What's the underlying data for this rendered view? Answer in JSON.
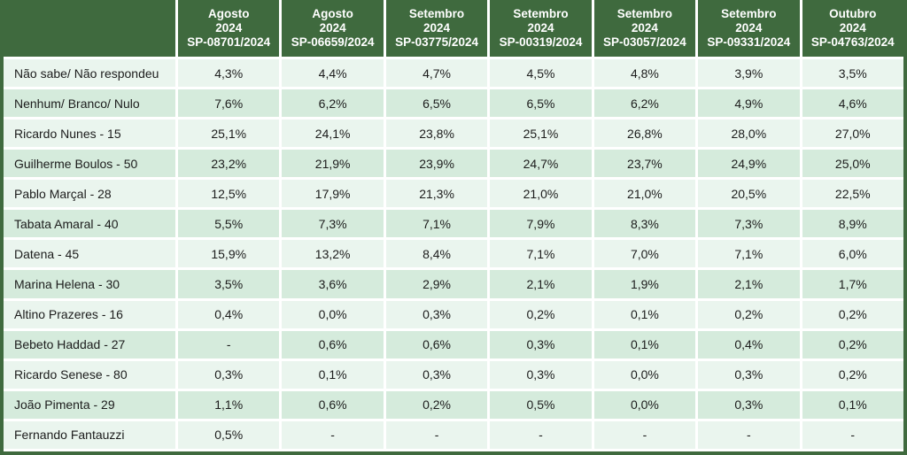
{
  "colors": {
    "header_green": "#3F6A3E",
    "row_light": "#EAF5EE",
    "row_dark": "#D5EBDC",
    "separator": "#FFFFFF",
    "header_text": "#FFFFFF",
    "cell_text": "#1C1C1C"
  },
  "chart_data": {
    "type": "table",
    "corner_label": "",
    "columns": [
      {
        "month": "Agosto",
        "year": "2024",
        "code": "SP-08701/2024"
      },
      {
        "month": "Agosto",
        "year": "2024",
        "code": "SP-06659/2024"
      },
      {
        "month": "Setembro",
        "year": "2024",
        "code": "SP-03775/2024"
      },
      {
        "month": "Setembro",
        "year": "2024",
        "code": "SP-00319/2024"
      },
      {
        "month": "Setembro",
        "year": "2024",
        "code": "SP-03057/2024"
      },
      {
        "month": "Setembro",
        "year": "2024",
        "code": "SP-09331/2024"
      },
      {
        "month": "Outubro",
        "year": "2024",
        "code": "SP-04763/2024"
      }
    ],
    "rows": [
      {
        "label": "Não sabe/ Não respondeu",
        "values": [
          "4,3%",
          "4,4%",
          "4,7%",
          "4,5%",
          "4,8%",
          "3,9%",
          "3,5%"
        ]
      },
      {
        "label": "Nenhum/ Branco/ Nulo",
        "values": [
          "7,6%",
          "6,2%",
          "6,5%",
          "6,5%",
          "6,2%",
          "4,9%",
          "4,6%"
        ]
      },
      {
        "label": "Ricardo Nunes - 15",
        "values": [
          "25,1%",
          "24,1%",
          "23,8%",
          "25,1%",
          "26,8%",
          "28,0%",
          "27,0%"
        ]
      },
      {
        "label": "Guilherme Boulos - 50",
        "values": [
          "23,2%",
          "21,9%",
          "23,9%",
          "24,7%",
          "23,7%",
          "24,9%",
          "25,0%"
        ]
      },
      {
        "label": "Pablo Marçal - 28",
        "values": [
          "12,5%",
          "17,9%",
          "21,3%",
          "21,0%",
          "21,0%",
          "20,5%",
          "22,5%"
        ]
      },
      {
        "label": "Tabata Amaral - 40",
        "values": [
          "5,5%",
          "7,3%",
          "7,1%",
          "7,9%",
          "8,3%",
          "7,3%",
          "8,9%"
        ]
      },
      {
        "label": "Datena - 45",
        "values": [
          "15,9%",
          "13,2%",
          "8,4%",
          "7,1%",
          "7,0%",
          "7,1%",
          "6,0%"
        ]
      },
      {
        "label": "Marina Helena - 30",
        "values": [
          "3,5%",
          "3,6%",
          "2,9%",
          "2,1%",
          "1,9%",
          "2,1%",
          "1,7%"
        ]
      },
      {
        "label": "Altino Prazeres - 16",
        "values": [
          "0,4%",
          "0,0%",
          "0,3%",
          "0,2%",
          "0,1%",
          "0,2%",
          "0,2%"
        ]
      },
      {
        "label": "Bebeto Haddad - 27",
        "values": [
          "-",
          "0,6%",
          "0,6%",
          "0,3%",
          "0,1%",
          "0,4%",
          "0,2%"
        ]
      },
      {
        "label": "Ricardo Senese - 80",
        "values": [
          "0,3%",
          "0,1%",
          "0,3%",
          "0,3%",
          "0,0%",
          "0,3%",
          "0,2%"
        ]
      },
      {
        "label": "João Pimenta - 29",
        "values": [
          "1,1%",
          "0,6%",
          "0,2%",
          "0,5%",
          "0,0%",
          "0,3%",
          "0,1%"
        ]
      },
      {
        "label": "Fernando Fantauzzi",
        "values": [
          "0,5%",
          "-",
          "-",
          "-",
          "-",
          "-",
          "-"
        ]
      }
    ]
  }
}
